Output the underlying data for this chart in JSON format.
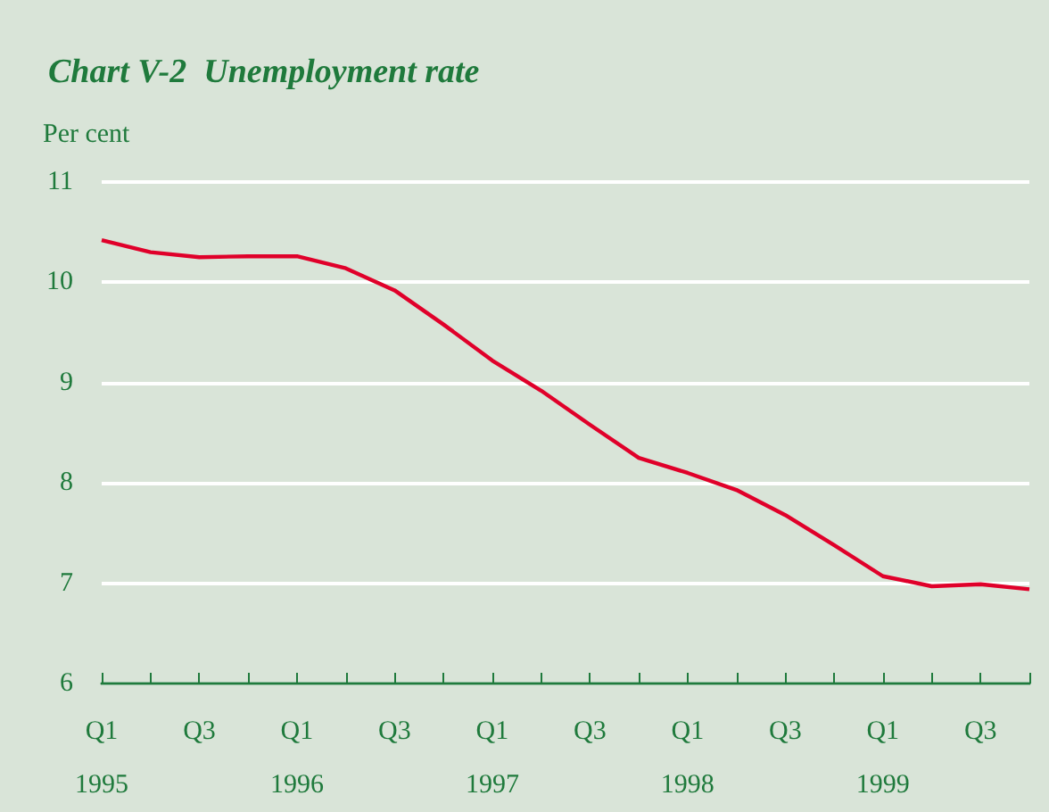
{
  "chart_data": {
    "type": "line",
    "title": "Chart V-2  Unemployment rate",
    "ylabel": "Per cent",
    "categories": [
      "Q1\n1995",
      null,
      "Q3",
      null,
      "Q1\n1996",
      null,
      "Q3",
      null,
      "Q1\n1997",
      null,
      "Q3",
      null,
      "Q1\n1998",
      null,
      "Q3",
      null,
      "Q1\n1999",
      null,
      "Q3",
      null
    ],
    "series": [
      {
        "color": "#e0002a",
        "values": [
          10.42,
          10.3,
          10.25,
          10.26,
          10.26,
          10.14,
          9.92,
          9.58,
          9.22,
          8.92,
          8.58,
          8.25,
          8.1,
          7.93,
          7.68,
          7.38,
          7.07,
          6.97,
          6.99,
          6.94
        ]
      }
    ],
    "ylim": [
      6,
      11
    ],
    "yticks": [
      6,
      7,
      8,
      9,
      10,
      11
    ],
    "grid": "y",
    "marker": "none",
    "line_style": "solid"
  }
}
